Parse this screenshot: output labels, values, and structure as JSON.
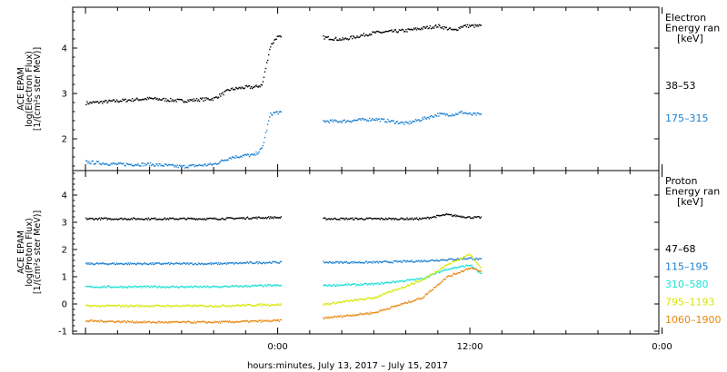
{
  "chart_data": [
    {
      "type": "scatter",
      "instrument": "ACE EPAM",
      "ylabel": [
        "ACE EPAM",
        "log(Electron Flux)",
        "[1/(cm²s ster MeV)]"
      ],
      "ylim": [
        1.3,
        4.9
      ],
      "yticks": [
        2,
        3,
        4
      ],
      "legend_title": [
        "Electron",
        "Energy ran",
        "[keV]"
      ],
      "series": [
        {
          "name": "38–53",
          "color": "#000000",
          "x": [
            -12,
            -10,
            -8,
            -6,
            -4,
            -3,
            -2,
            -1.5,
            -1,
            -0.5,
            -0.1,
            2.8,
            4,
            6,
            8,
            10,
            11,
            11.5,
            12,
            12.7
          ],
          "y": [
            2.8,
            2.85,
            2.9,
            2.85,
            2.9,
            3.1,
            3.15,
            3.15,
            3.2,
            4.05,
            4.25,
            4.25,
            4.2,
            4.35,
            4.4,
            4.5,
            4.4,
            4.5,
            4.5,
            4.5
          ]
        },
        {
          "name": "175–315",
          "color": "#1a7fd1",
          "x": [
            -12,
            -10,
            -8,
            -6,
            -4,
            -3,
            -2,
            -1.5,
            -1,
            -0.5,
            -0.1,
            2.8,
            4,
            6,
            8,
            10,
            11,
            11.5,
            12,
            12.7
          ],
          "y": [
            1.5,
            1.45,
            1.45,
            1.4,
            1.45,
            1.6,
            1.65,
            1.65,
            1.8,
            2.55,
            2.6,
            2.4,
            2.4,
            2.45,
            2.35,
            2.55,
            2.55,
            2.6,
            2.55,
            2.55
          ]
        }
      ]
    },
    {
      "type": "scatter",
      "instrument": "ACE EPAM",
      "ylabel": [
        "ACE EPAM",
        "log(Proton Flux)",
        "[1/(cm²s ster MeV)]"
      ],
      "ylim": [
        -1.1,
        4.9
      ],
      "yticks": [
        -1,
        0,
        1,
        2,
        3,
        4
      ],
      "legend_title": [
        "Proton",
        "Energy ran",
        "[keV]"
      ],
      "series": [
        {
          "name": "47–68",
          "color": "#000000",
          "x": [
            -12,
            -8,
            -4,
            -0.3,
            2.8,
            6,
            9,
            10.5,
            12,
            12.7
          ],
          "y": [
            3.15,
            3.15,
            3.15,
            3.2,
            3.15,
            3.15,
            3.15,
            3.3,
            3.2,
            3.2
          ]
        },
        {
          "name": "115–195",
          "color": "#1a7fd1",
          "x": [
            -12,
            -8,
            -4,
            -0.3,
            2.8,
            6,
            9,
            10.5,
            12,
            12.7
          ],
          "y": [
            1.5,
            1.5,
            1.5,
            1.55,
            1.55,
            1.55,
            1.6,
            1.65,
            1.7,
            1.65
          ]
        },
        {
          "name": "310–580",
          "color": "#19e0d6",
          "x": [
            -12,
            -8,
            -4,
            -0.3,
            2.8,
            6,
            9,
            10.5,
            12,
            12.7
          ],
          "y": [
            0.65,
            0.65,
            0.65,
            0.7,
            0.7,
            0.75,
            0.95,
            1.3,
            1.45,
            1.1
          ]
        },
        {
          "name": "795–1193",
          "color": "#d8e600",
          "x": [
            -12,
            -8,
            -4,
            -0.3,
            2.8,
            6,
            9,
            10.5,
            12,
            12.7
          ],
          "y": [
            -0.05,
            -0.05,
            -0.05,
            0.0,
            0.0,
            0.25,
            0.9,
            1.45,
            1.85,
            1.3
          ]
        },
        {
          "name": "1060–1900",
          "color": "#e8870f",
          "x": [
            -12,
            -8,
            -4,
            -0.3,
            2.8,
            6,
            9,
            10.5,
            12,
            12.7
          ],
          "y": [
            -0.6,
            -0.65,
            -0.65,
            -0.6,
            -0.5,
            -0.3,
            0.25,
            1.0,
            1.35,
            1.2
          ]
        }
      ]
    }
  ],
  "x_axis": {
    "title": "hours:minutes, July 13, 2017 – July 15, 2017",
    "range_hours": [
      -12.8,
      23.8
    ],
    "ticks": [
      {
        "hours": 0,
        "label": "0:00"
      },
      {
        "hours": 12,
        "label": "12:00"
      },
      {
        "hours": 24,
        "label": "0:00"
      }
    ],
    "data_gap_hours": [
      0.2,
      2.8
    ]
  }
}
